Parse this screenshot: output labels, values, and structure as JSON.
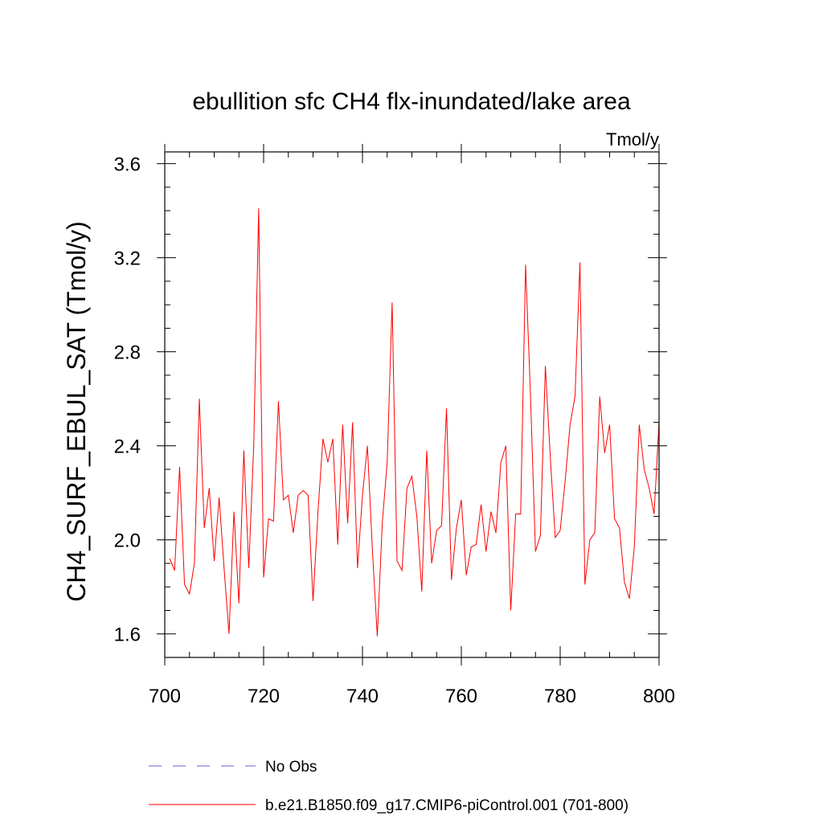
{
  "chart_data": {
    "type": "line",
    "title": "ebullition sfc CH4 flx-inundated/lake area",
    "units_label": "Tmol/y",
    "ylabel": "CH4_SURF_EBUL_SAT  (Tmol/y)",
    "xlabel": "",
    "xlim": [
      700,
      800
    ],
    "ylim": [
      1.5,
      3.65
    ],
    "x_ticks": [
      700,
      720,
      740,
      760,
      780,
      800
    ],
    "x_tick_labels": [
      "700",
      "720",
      "740",
      "760",
      "780",
      "800"
    ],
    "y_ticks": [
      1.6,
      2.0,
      2.4,
      2.8,
      3.2,
      3.6
    ],
    "y_tick_labels": [
      "1.6",
      "2.0",
      "2.4",
      "2.8",
      "3.2",
      "3.6"
    ],
    "series": [
      {
        "name": "b.e21.B1850.f09_g17.CMIP6-piControl.001 (701-800)",
        "color": "#ff0000",
        "style": "solid",
        "x": [
          701,
          702,
          703,
          704,
          705,
          706,
          707,
          708,
          709,
          710,
          711,
          712,
          713,
          714,
          715,
          716,
          717,
          718,
          719,
          720,
          721,
          722,
          723,
          724,
          725,
          726,
          727,
          728,
          729,
          730,
          731,
          732,
          733,
          734,
          735,
          736,
          737,
          738,
          739,
          740,
          741,
          742,
          743,
          744,
          745,
          746,
          747,
          748,
          749,
          750,
          751,
          752,
          753,
          754,
          755,
          756,
          757,
          758,
          759,
          760,
          761,
          762,
          763,
          764,
          765,
          766,
          767,
          768,
          769,
          770,
          771,
          772,
          773,
          774,
          775,
          776,
          777,
          778,
          779,
          780,
          781,
          782,
          783,
          784,
          785,
          786,
          787,
          788,
          789,
          790,
          791,
          792,
          793,
          794,
          795,
          796,
          797,
          798,
          799,
          800
        ],
        "values": [
          1.92,
          1.87,
          2.31,
          1.81,
          1.77,
          1.9,
          2.6,
          2.05,
          2.22,
          1.91,
          2.18,
          1.88,
          1.6,
          2.12,
          1.73,
          2.38,
          1.88,
          2.4,
          3.41,
          1.84,
          2.09,
          2.08,
          2.59,
          2.17,
          2.19,
          2.03,
          2.19,
          2.21,
          2.19,
          1.74,
          2.12,
          2.43,
          2.33,
          2.43,
          1.98,
          2.49,
          2.07,
          2.5,
          1.88,
          2.19,
          2.4,
          1.96,
          1.59,
          2.07,
          2.33,
          3.01,
          1.91,
          1.87,
          2.22,
          2.27,
          2.1,
          1.78,
          2.38,
          1.9,
          2.04,
          2.06,
          2.56,
          1.83,
          2.05,
          2.17,
          1.85,
          1.97,
          1.98,
          2.15,
          1.95,
          2.12,
          2.03,
          2.33,
          2.4,
          1.7,
          2.11,
          2.11,
          3.17,
          2.61,
          1.95,
          2.02,
          2.74,
          2.35,
          2.01,
          2.04,
          2.25,
          2.49,
          2.61,
          3.18,
          1.81,
          2.0,
          2.03,
          2.61,
          2.37,
          2.49,
          2.09,
          2.05,
          1.82,
          1.75,
          1.97,
          2.49,
          2.3,
          2.22,
          2.11,
          2.5
        ]
      },
      {
        "name": "No Obs",
        "color": "#6e62c8",
        "style": "dashed",
        "x": [],
        "values": []
      }
    ],
    "legend_position": "bottom"
  }
}
